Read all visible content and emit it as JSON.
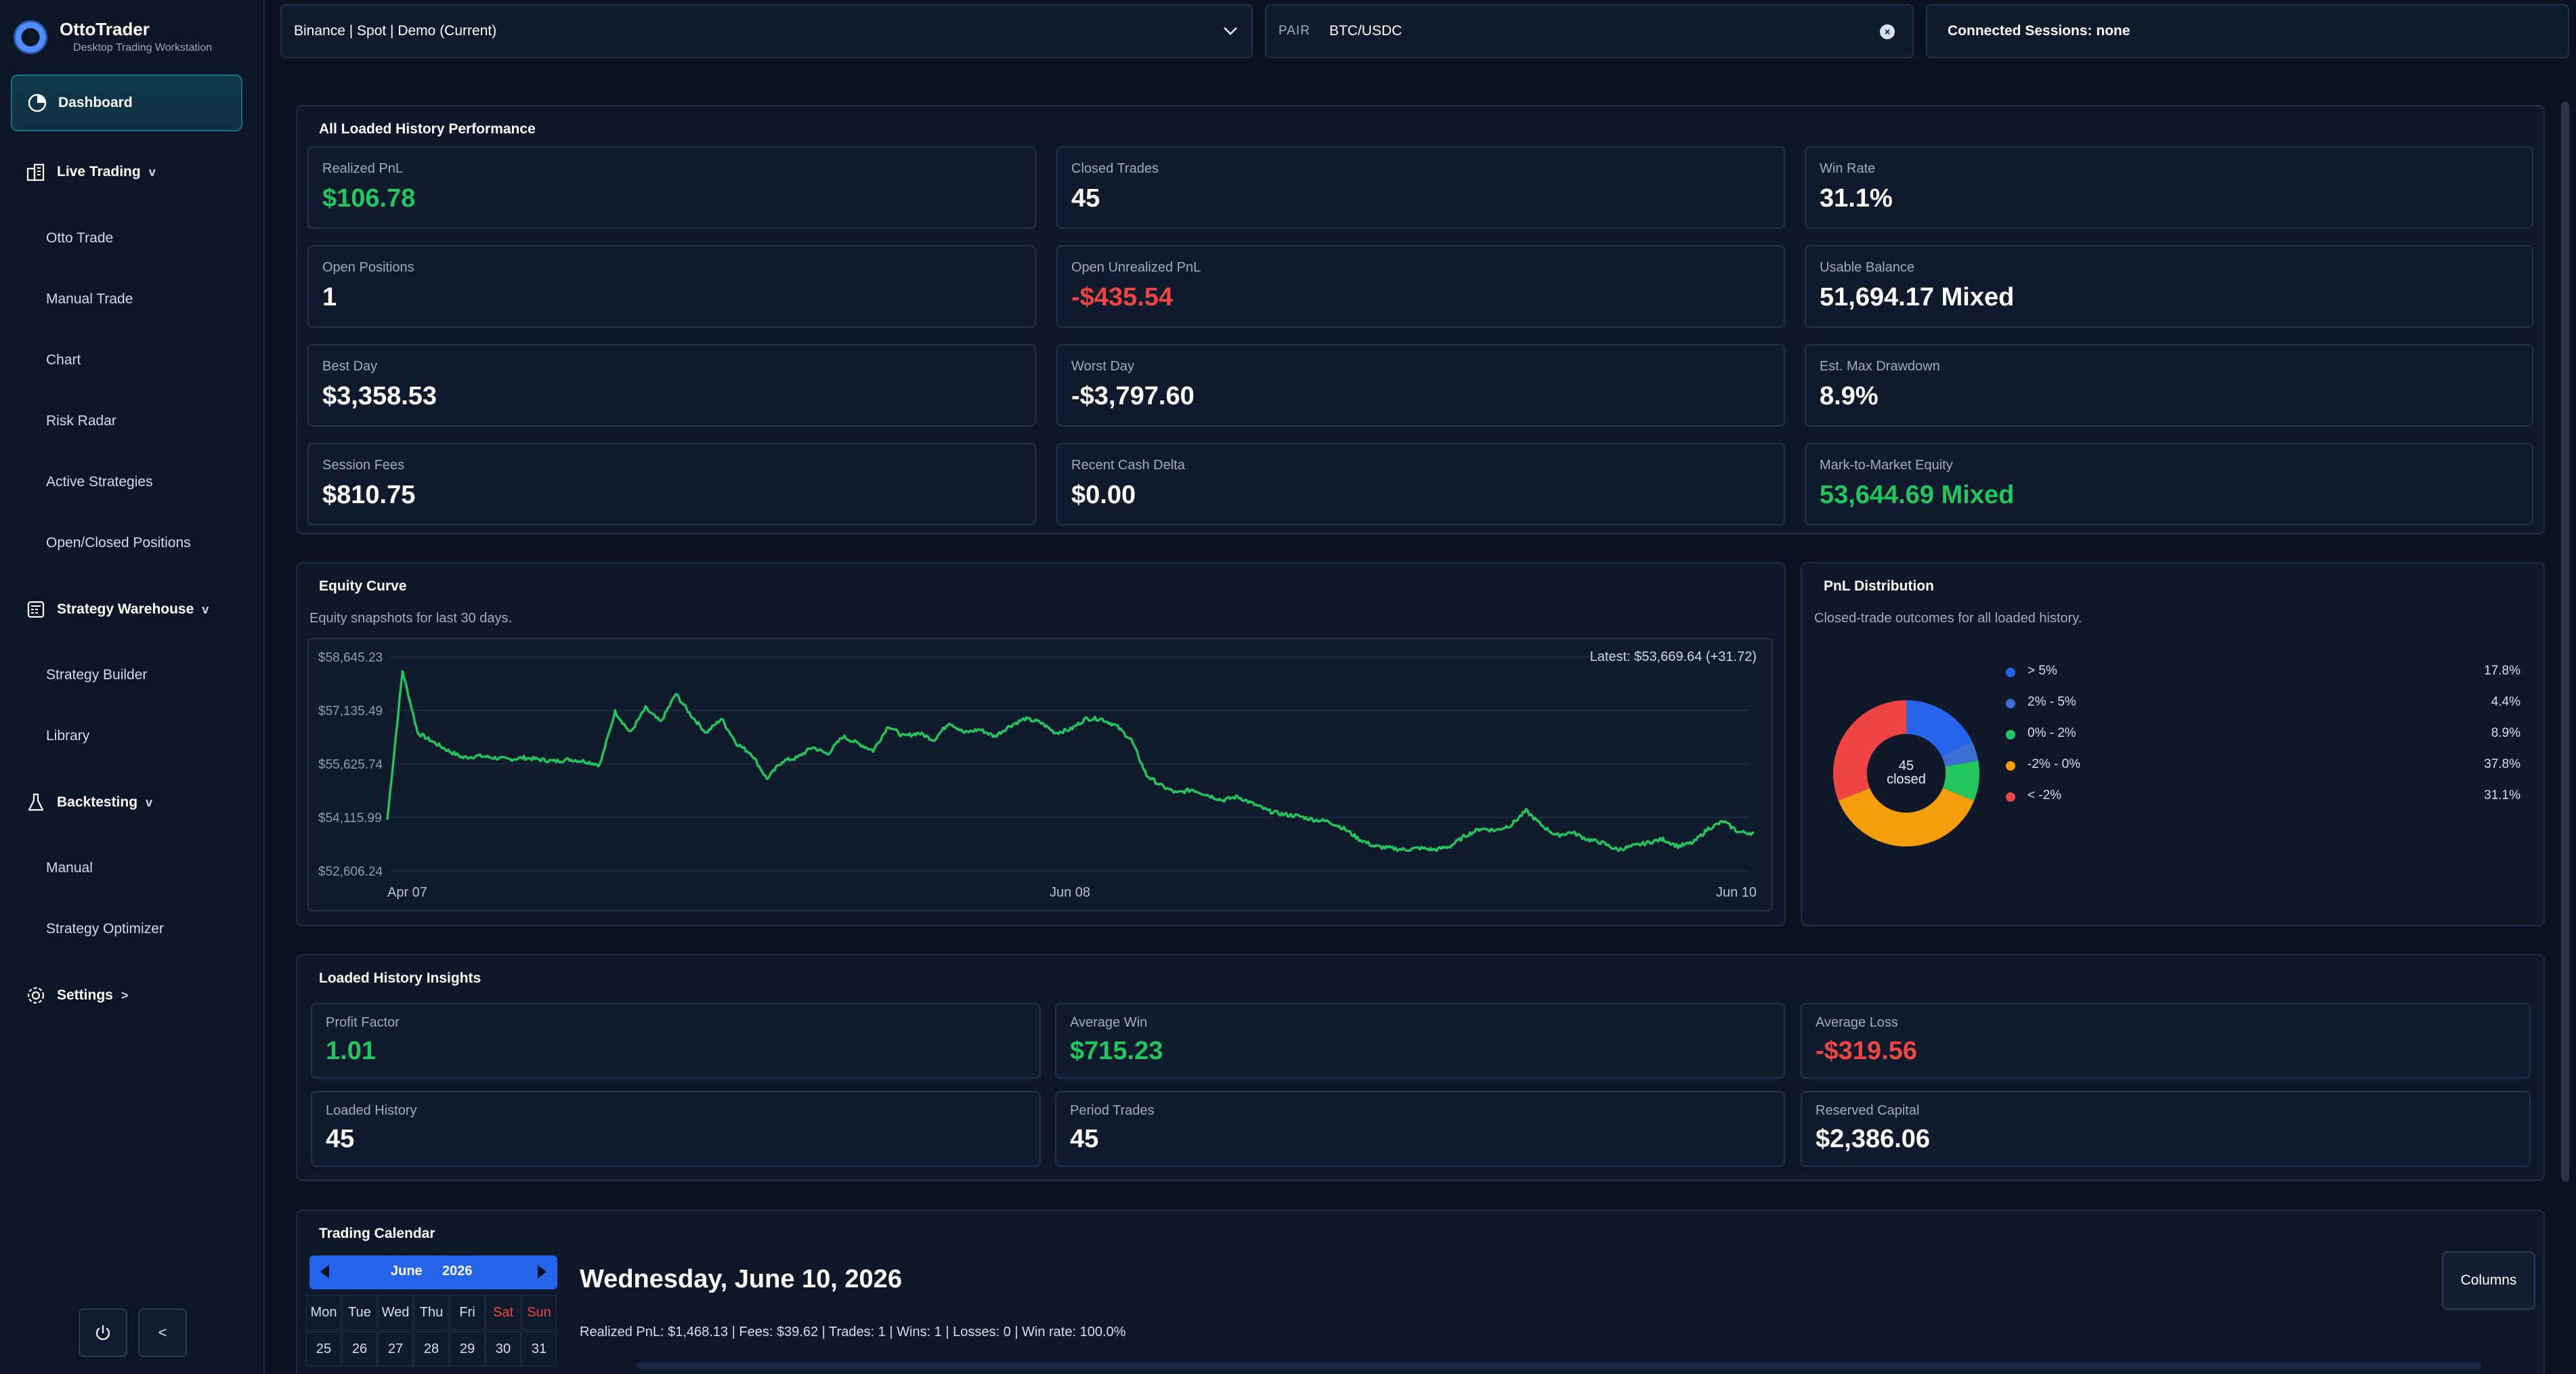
{
  "brand": {
    "name": "OttoTrader",
    "subtitle": "Desktop Trading Workstation"
  },
  "sidebar": {
    "dashboard": "Dashboard",
    "live_trading": "Live Trading",
    "live_items": [
      "Otto Trade",
      "Manual Trade",
      "Chart",
      "Risk Radar",
      "Active Strategies",
      "Open/Closed Positions"
    ],
    "strategy_warehouse": "Strategy Warehouse",
    "warehouse_items": [
      "Strategy Builder",
      "Library"
    ],
    "backtesting": "Backtesting",
    "backtest_items": [
      "Manual",
      "Strategy Optimizer"
    ],
    "settings": "Settings",
    "caret_down": "v",
    "caret_right": ">",
    "collapse_label": "<"
  },
  "topbar": {
    "exchange_select": "Binance | Spot | Demo (Current)",
    "pair_label": "PAIR",
    "pair_value": "BTC/USDC",
    "sessions": "Connected Sessions: none"
  },
  "performance": {
    "title": "All Loaded History Performance",
    "cards": [
      {
        "label": "Realized PnL",
        "value": "$106.78",
        "tone": "pos"
      },
      {
        "label": "Closed Trades",
        "value": "45",
        "tone": ""
      },
      {
        "label": "Win Rate",
        "value": "31.1%",
        "tone": ""
      },
      {
        "label": "Open Positions",
        "value": "1",
        "tone": ""
      },
      {
        "label": "Open Unrealized PnL",
        "value": "-$435.54",
        "tone": "neg"
      },
      {
        "label": "Usable Balance",
        "value": "51,694.17 Mixed",
        "tone": ""
      },
      {
        "label": "Best Day",
        "value": "$3,358.53",
        "tone": ""
      },
      {
        "label": "Worst Day",
        "value": "-$3,797.60",
        "tone": ""
      },
      {
        "label": "Est. Max Drawdown",
        "value": "8.9%",
        "tone": ""
      },
      {
        "label": "Session Fees",
        "value": "$810.75",
        "tone": ""
      },
      {
        "label": "Recent Cash Delta",
        "value": "$0.00",
        "tone": ""
      },
      {
        "label": "Mark-to-Market Equity",
        "value": "53,644.69 Mixed",
        "tone": "pos"
      }
    ]
  },
  "equity": {
    "title": "Equity Curve",
    "description": "Equity snapshots for last 30 days.",
    "latest": "Latest: $53,669.64  (+31.72)"
  },
  "chart_data": [
    {
      "type": "line",
      "title": "Equity Curve",
      "xlabel": "",
      "ylabel": "",
      "x_ticks": [
        "Apr 07",
        "Jun 08",
        "Jun 10"
      ],
      "y_ticks": [
        "$58,645.23",
        "$57,135.49",
        "$55,625.74",
        "$54,115.99",
        "$52,606.24"
      ],
      "ylim": [
        52606.24,
        58645.23
      ],
      "grid": true,
      "color": "#22c55e",
      "series": [
        {
          "values": [
            54050,
            58250,
            56500,
            56250,
            56000,
            55800,
            55850,
            55800,
            55750,
            55800,
            55750,
            55700,
            55750,
            55700,
            55600,
            57100,
            56500,
            57200,
            56800,
            57600,
            57000,
            56500,
            56900,
            56200,
            55900,
            55200,
            55700,
            55800,
            56100,
            55900,
            56400,
            56200,
            56000,
            56700,
            56400,
            56500,
            56300,
            56800,
            56500,
            56600,
            56400,
            56700,
            56900,
            56800,
            56500,
            56600,
            56900,
            56900,
            56700,
            56300,
            55300,
            55000,
            54800,
            54900,
            54750,
            54600,
            54700,
            54500,
            54300,
            54200,
            54150,
            54050,
            54000,
            53800,
            53500,
            53300,
            53250,
            53200,
            53250,
            53200,
            53300,
            53600,
            53800,
            53750,
            53900,
            54300,
            53900,
            53600,
            53700,
            53500,
            53400,
            53200,
            53300,
            53400,
            53500,
            53300,
            53400,
            53800,
            54000,
            53700,
            53670
          ]
        }
      ]
    },
    {
      "type": "pie",
      "title": "PnL Distribution",
      "center_value": "45",
      "center_label": "closed",
      "slices": [
        {
          "label": "> 5%",
          "value": 17.8,
          "pct": "17.8%",
          "color": "#2563eb"
        },
        {
          "label": "2% - 5%",
          "value": 4.4,
          "pct": "4.4%",
          "color": "#3b6fd1"
        },
        {
          "label": "0% - 2%",
          "value": 8.9,
          "pct": "8.9%",
          "color": "#22c55e"
        },
        {
          "label": "-2% - 0%",
          "value": 37.8,
          "pct": "37.8%",
          "color": "#f59e0b"
        },
        {
          "label": "< -2%",
          "value": 31.1,
          "pct": "31.1%",
          "color": "#ef4444"
        }
      ]
    }
  ],
  "pnl_dist": {
    "title": "PnL Distribution",
    "description": "Closed-trade outcomes for all loaded history."
  },
  "insights": {
    "title": "Loaded History Insights",
    "cards": [
      {
        "label": "Profit Factor",
        "value": "1.01",
        "tone": "pos"
      },
      {
        "label": "Average Win",
        "value": "$715.23",
        "tone": "pos"
      },
      {
        "label": "Average Loss",
        "value": "-$319.56",
        "tone": "neg"
      },
      {
        "label": "Loaded History",
        "value": "45",
        "tone": ""
      },
      {
        "label": "Period Trades",
        "value": "45",
        "tone": ""
      },
      {
        "label": "Reserved Capital",
        "value": "$2,386.06",
        "tone": ""
      }
    ]
  },
  "calendar": {
    "title": "Trading Calendar",
    "month": "June",
    "year": "2026",
    "weekdays": [
      "Mon",
      "Tue",
      "Wed",
      "Thu",
      "Fri",
      "Sat",
      "Sun"
    ],
    "first_row": [
      "25",
      "26",
      "27",
      "28",
      "29",
      "30",
      "31"
    ],
    "selected_date": "Wednesday, June 10, 2026",
    "summary": "Realized PnL: $1,468.13 | Fees: $39.62 | Trades: 1 | Wins: 1 | Losses: 0 | Win rate: 100.0%",
    "columns_button": "Columns"
  }
}
